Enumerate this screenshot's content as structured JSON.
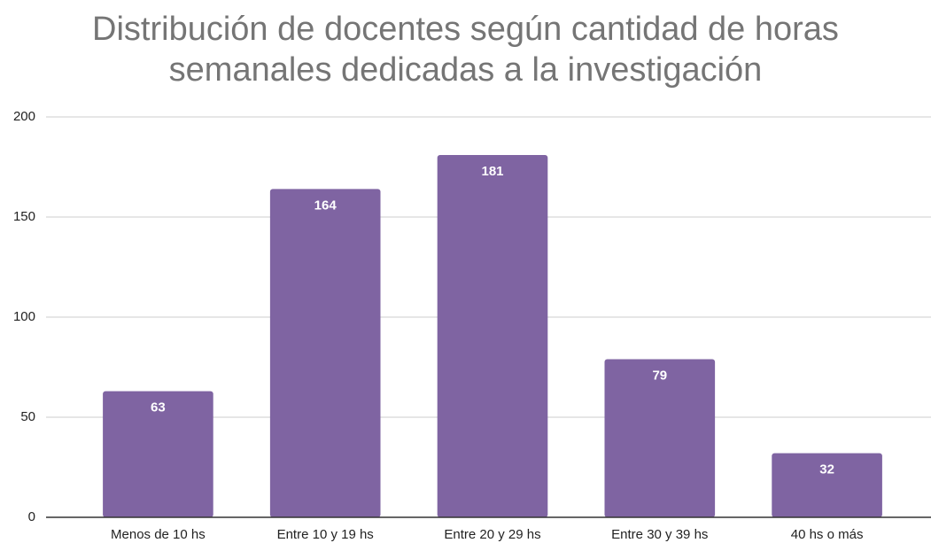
{
  "chart_data": {
    "type": "bar",
    "title": "Distribución de docentes según cantidad de horas semanales dedicadas a la investigación",
    "categories": [
      "Menos de 10 hs",
      "Entre 10 y 19 hs",
      "Entre 20 y 29 hs",
      "Entre 30 y 39 hs",
      "40 hs o más"
    ],
    "values": [
      63,
      164,
      181,
      79,
      32
    ],
    "color": "#7f64a2",
    "ylim": [
      0,
      200
    ],
    "yticks": [
      0,
      50,
      100,
      150,
      200
    ],
    "grid": true
  }
}
